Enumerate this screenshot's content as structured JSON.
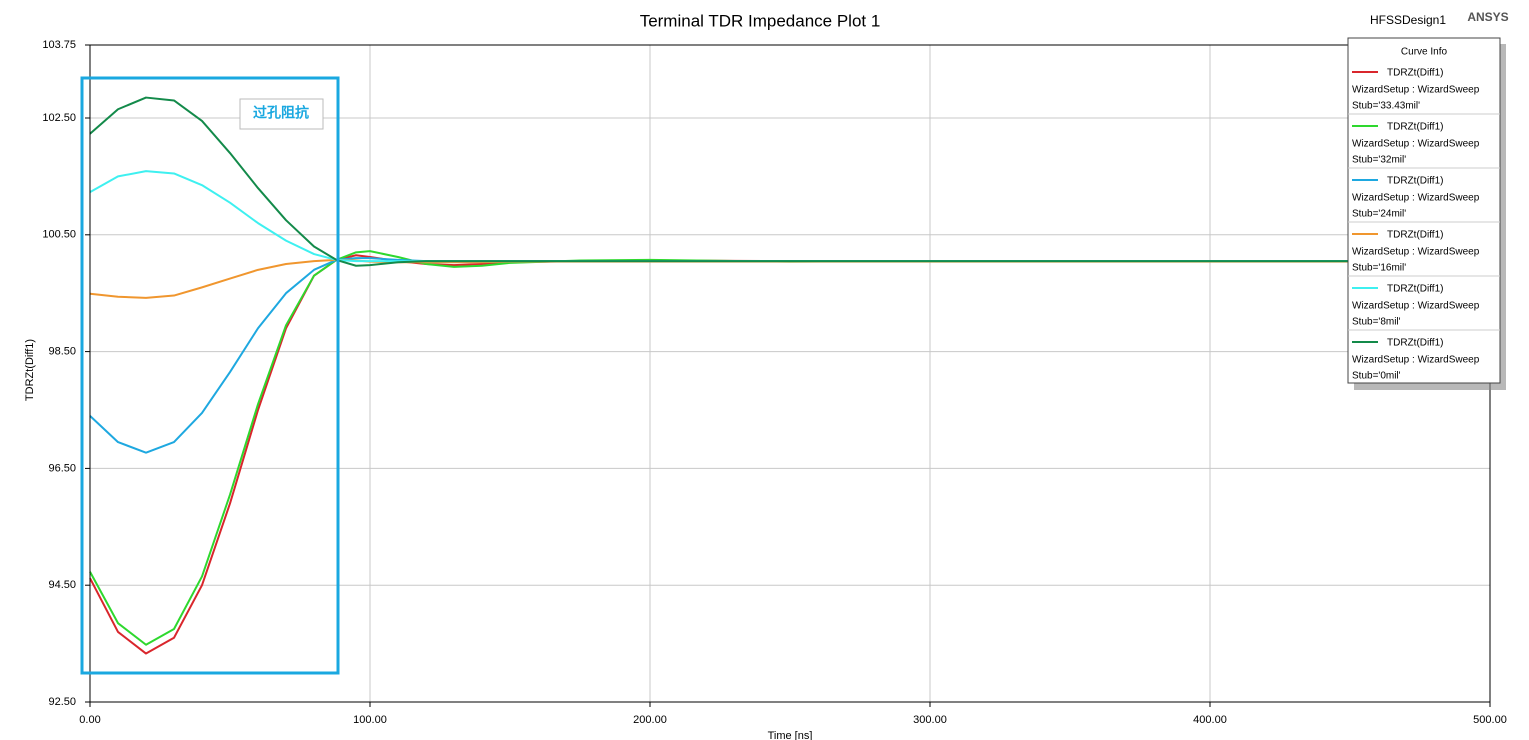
{
  "chart_data": {
    "type": "line",
    "title": "Terminal TDR Impedance Plot 1",
    "design": "HFSSDesign1",
    "brand": "ANSYS",
    "y_label": "TDRZt(Diff1)",
    "x_label": "Time [ns]",
    "annotation": "过孔阻抗",
    "legend_title": "Curve Info",
    "legend_position": "upper right",
    "grid": true,
    "xlim": [
      0,
      500
    ],
    "ylim": [
      92.5,
      103.75
    ],
    "xticks": [
      {
        "value": 0,
        "label": "0.00"
      },
      {
        "value": 100,
        "label": "100.00"
      },
      {
        "value": 200,
        "label": "200.00"
      },
      {
        "value": 300,
        "label": "300.00"
      },
      {
        "value": 400,
        "label": "400.00"
      },
      {
        "value": 500,
        "label": "500.00"
      }
    ],
    "yticks": [
      {
        "value": 92.5,
        "label": "92.50"
      },
      {
        "value": 94.5,
        "label": "94.50"
      },
      {
        "value": 96.5,
        "label": "96.50"
      },
      {
        "value": 98.5,
        "label": "98.50"
      },
      {
        "value": 100.5,
        "label": "100.50"
      },
      {
        "value": 102.5,
        "label": "102.50"
      },
      {
        "value": 103.75,
        "label": "103.75"
      }
    ],
    "x": [
      0,
      10,
      20,
      30,
      40,
      50,
      60,
      70,
      80,
      88,
      95,
      100,
      110,
      120,
      130,
      140,
      150,
      175,
      200,
      250,
      300,
      400,
      500
    ],
    "series": [
      {
        "name": "TDRZt(Diff1)",
        "setup": "WizardSetup : WizardSweep",
        "stub": "Stub='33.43mil'",
        "color": "#d9262c",
        "values": [
          94.62,
          93.7,
          93.33,
          93.6,
          94.5,
          95.9,
          97.5,
          98.9,
          99.8,
          100.07,
          100.15,
          100.12,
          100.05,
          100.0,
          99.98,
          100.0,
          100.03,
          100.05,
          100.06,
          100.05,
          100.05,
          100.05,
          100.05
        ]
      },
      {
        "name": "TDRZt(Diff1)",
        "setup": "WizardSetup : WizardSweep",
        "stub": "Stub='32mil'",
        "color": "#2ed82e",
        "values": [
          94.73,
          93.85,
          93.48,
          93.75,
          94.65,
          96.05,
          97.6,
          98.95,
          99.8,
          100.07,
          100.2,
          100.22,
          100.12,
          100.0,
          99.95,
          99.97,
          100.02,
          100.06,
          100.07,
          100.04,
          100.05,
          100.05,
          100.05
        ]
      },
      {
        "name": "TDRZt(Diff1)",
        "setup": "WizardSetup : WizardSweep",
        "stub": "Stub='24mil'",
        "color": "#1ea8e0",
        "values": [
          97.4,
          96.95,
          96.77,
          96.95,
          97.45,
          98.15,
          98.9,
          99.5,
          99.9,
          100.07,
          100.1,
          100.1,
          100.07,
          100.05,
          100.05,
          100.05,
          100.05,
          100.05,
          100.05,
          100.05,
          100.05,
          100.05,
          100.05
        ]
      },
      {
        "name": "TDRZt(Diff1)",
        "setup": "WizardSetup : WizardSweep",
        "stub": "Stub='16mil'",
        "color": "#f0962e",
        "values": [
          99.49,
          99.44,
          99.42,
          99.46,
          99.6,
          99.75,
          99.9,
          100.0,
          100.05,
          100.07,
          100.06,
          100.04,
          100.03,
          100.03,
          100.03,
          100.03,
          100.04,
          100.04,
          100.04,
          100.04,
          100.04,
          100.04,
          100.04
        ]
      },
      {
        "name": "TDRZt(Diff1)",
        "setup": "WizardSetup : WizardSweep",
        "stub": "Stub='8mil'",
        "color": "#3ef0f0",
        "values": [
          101.23,
          101.5,
          101.59,
          101.55,
          101.35,
          101.05,
          100.7,
          100.4,
          100.17,
          100.07,
          100.05,
          100.05,
          100.05,
          100.05,
          100.05,
          100.05,
          100.05,
          100.05,
          100.05,
          100.05,
          100.05,
          100.05,
          100.05
        ]
      },
      {
        "name": "TDRZt(Diff1)",
        "setup": "WizardSetup : WizardSweep",
        "stub": "Stub='0mil'",
        "color": "#138a4a",
        "values": [
          102.23,
          102.65,
          102.85,
          102.8,
          102.45,
          101.9,
          101.3,
          100.75,
          100.3,
          100.07,
          99.97,
          99.98,
          100.03,
          100.05,
          100.05,
          100.05,
          100.05,
          100.05,
          100.05,
          100.05,
          100.05,
          100.05,
          100.05
        ]
      }
    ]
  }
}
